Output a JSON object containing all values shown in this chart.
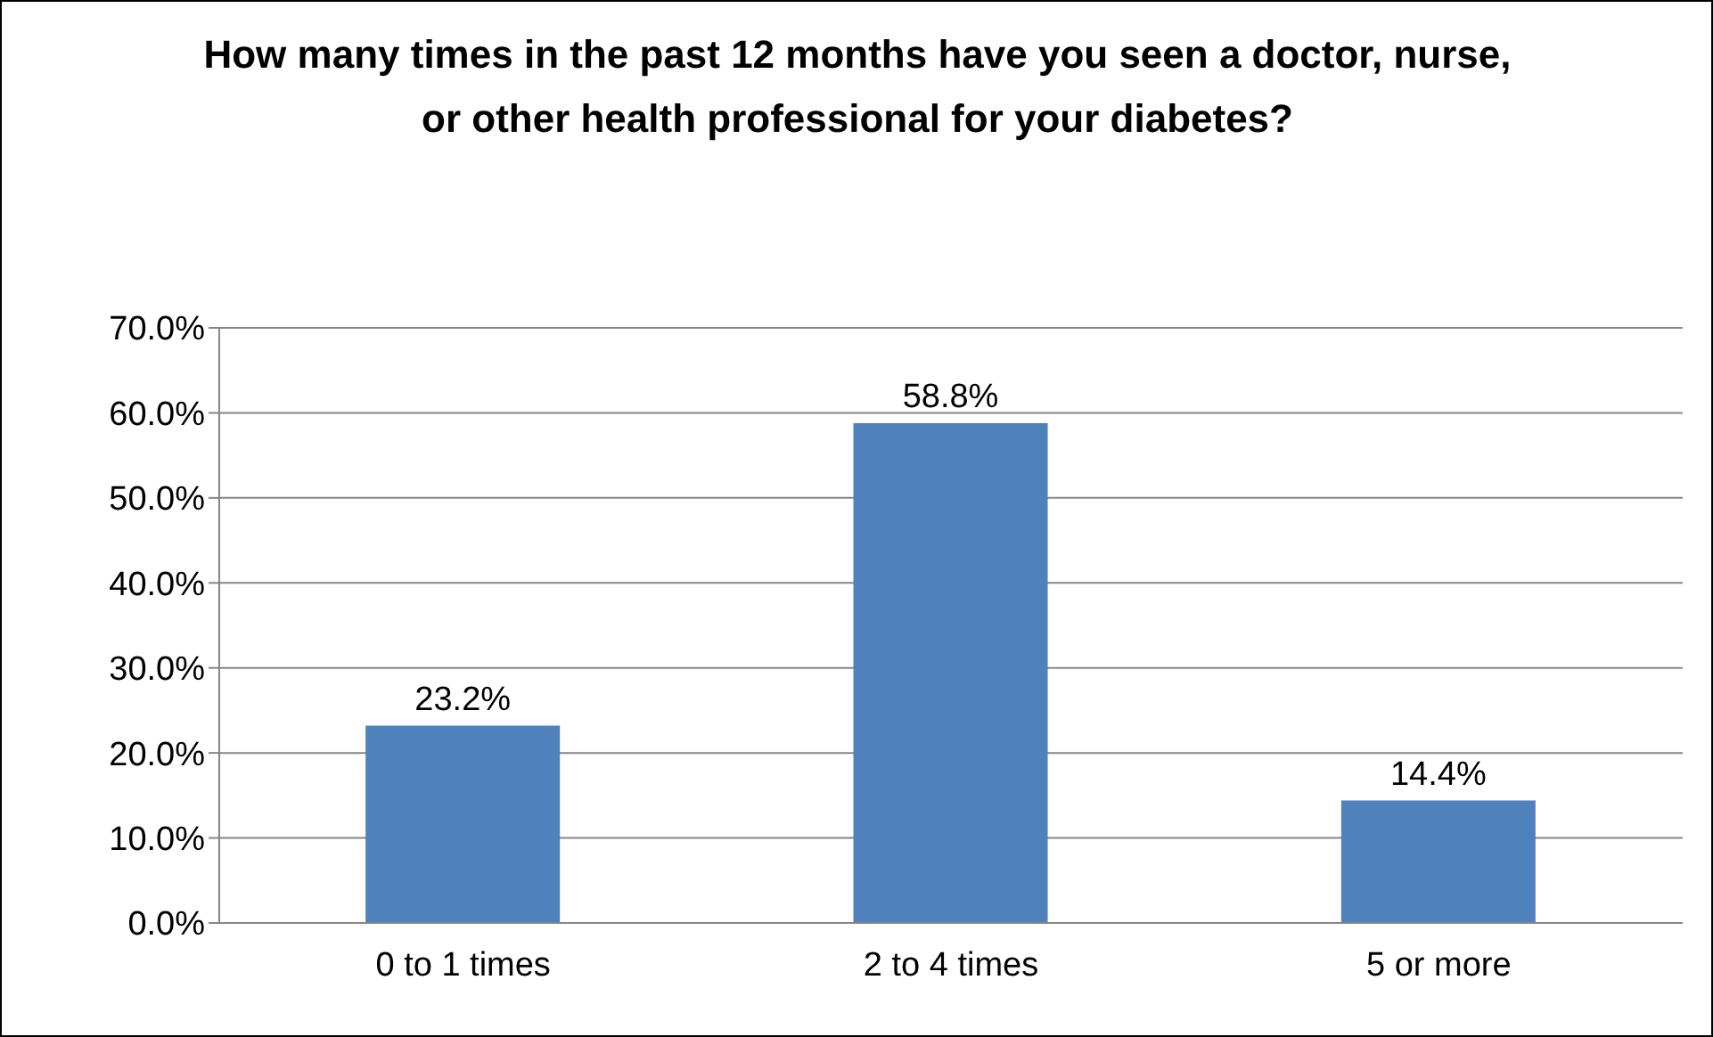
{
  "chart_data": {
    "type": "bar",
    "title": "How many times in the past 12 months have you seen a doctor, nurse, or other health professional for your diabetes?",
    "categories": [
      "0 to 1 times",
      "2 to 4 times",
      "5 or more"
    ],
    "values": [
      23.2,
      58.8,
      14.4
    ],
    "value_labels": [
      "23.2%",
      "58.8%",
      "14.4%"
    ],
    "color": "#4f81bd",
    "ylim": [
      0,
      70
    ],
    "yticks": [
      {
        "value": 0,
        "label": "0.0%"
      },
      {
        "value": 10,
        "label": "10.0%"
      },
      {
        "value": 20,
        "label": "20.0%"
      },
      {
        "value": 30,
        "label": "30.0%"
      },
      {
        "value": 40,
        "label": "40.0%"
      },
      {
        "value": 50,
        "label": "50.0%"
      },
      {
        "value": 60,
        "label": "60.0%"
      },
      {
        "value": 70,
        "label": "70.0%"
      }
    ],
    "grid": "y"
  }
}
